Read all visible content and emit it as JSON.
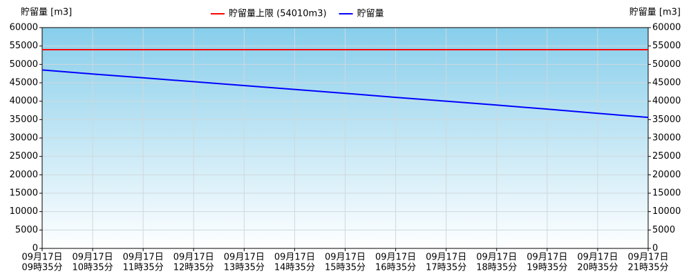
{
  "chart_data": {
    "type": "line",
    "y_label": "貯留量 [m3]",
    "y2_label": "貯留量 [m3]",
    "categories": [
      [
        "09月17日",
        "09時35分"
      ],
      [
        "09月17日",
        "10時35分"
      ],
      [
        "09月17日",
        "11時35分"
      ],
      [
        "09月17日",
        "12時35分"
      ],
      [
        "09月17日",
        "13時35分"
      ],
      [
        "09月17日",
        "14時35分"
      ],
      [
        "09月17日",
        "15時35分"
      ],
      [
        "09月17日",
        "16時35分"
      ],
      [
        "09月17日",
        "17時35分"
      ],
      [
        "09月17日",
        "18時35分"
      ],
      [
        "09月17日",
        "19時35分"
      ],
      [
        "09月17日",
        "20時35分"
      ],
      [
        "09月17日",
        "21時35分"
      ]
    ],
    "series": [
      {
        "name": "貯留量上限 (54010m3)",
        "color": "#ff0000",
        "values": [
          54010,
          54010,
          54010,
          54010,
          54010,
          54010,
          54010,
          54010,
          54010,
          54010,
          54010,
          54010,
          54010
        ]
      },
      {
        "name": "貯留量",
        "color": "#0000ff",
        "values": [
          48500,
          47400,
          46350,
          45300,
          44250,
          43200,
          42150,
          41050,
          40000,
          38950,
          37850,
          36700,
          35600
        ]
      }
    ],
    "ylim": [
      0,
      60000
    ],
    "yticks": [
      0,
      5000,
      10000,
      15000,
      20000,
      25000,
      30000,
      35000,
      40000,
      45000,
      50000,
      55000,
      60000
    ],
    "y2lim": [
      0,
      60000
    ],
    "y2ticks": [
      0,
      5000,
      10000,
      15000,
      20000,
      25000,
      30000,
      35000,
      40000,
      45000,
      50000,
      55000,
      60000
    ],
    "grid": true
  }
}
